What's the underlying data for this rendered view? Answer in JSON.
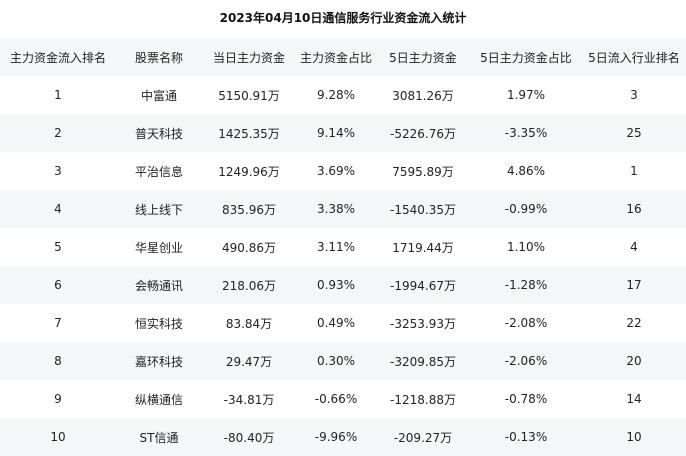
{
  "title": "2023年04月10日通信服务行业资金流入统计",
  "columns": [
    "主力资金流入排名",
    "股票名称",
    "当日主力资金",
    "主力资金占比",
    "5日主力资金",
    "5日主力资金占比",
    "5日流入行业排名"
  ],
  "rows": [
    [
      "1",
      "中富通",
      "5150.91万",
      "9.28%",
      "3081.26万",
      "1.97%",
      "3"
    ],
    [
      "2",
      "普天科技",
      "1425.35万",
      "9.14%",
      "-5226.76万",
      "-3.35%",
      "25"
    ],
    [
      "3",
      "平治信息",
      "1249.96万",
      "3.69%",
      "7595.89万",
      "4.86%",
      "1"
    ],
    [
      "4",
      "线上线下",
      "835.96万",
      "3.38%",
      "-1540.35万",
      "-0.99%",
      "16"
    ],
    [
      "5",
      "华星创业",
      "490.86万",
      "3.11%",
      "1719.44万",
      "1.10%",
      "4"
    ],
    [
      "6",
      "会畅通讯",
      "218.06万",
      "0.93%",
      "-1994.67万",
      "-1.28%",
      "17"
    ],
    [
      "7",
      "恒实科技",
      "83.84万",
      "0.49%",
      "-3253.93万",
      "-2.08%",
      "22"
    ],
    [
      "8",
      "嘉环科技",
      "29.47万",
      "0.30%",
      "-3209.85万",
      "-2.06%",
      "20"
    ],
    [
      "9",
      "纵横通信",
      "-34.81万",
      "-0.66%",
      "-1218.88万",
      "-0.78%",
      "14"
    ],
    [
      "10",
      "ST信通",
      "-80.40万",
      "-9.96%",
      "-209.27万",
      "-0.13%",
      "10"
    ]
  ]
}
